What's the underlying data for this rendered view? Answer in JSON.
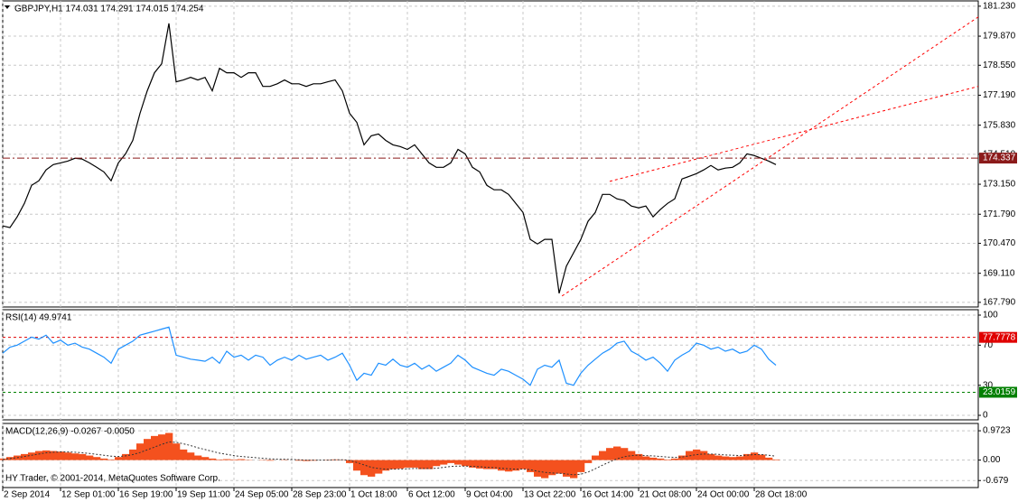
{
  "chart_data": [
    {
      "type": "line",
      "title": "GBPJPY,H1  174.031 174.291 174.015 174.254",
      "color": "#000000",
      "xlim": [
        0,
        135
      ],
      "ylim": [
        167.58,
        181.47
      ],
      "grid": true,
      "yticks": [
        {
          "value": 181.23,
          "label": "181.230"
        },
        {
          "value": 179.87,
          "label": "179.870"
        },
        {
          "value": 178.55,
          "label": "178.550"
        },
        {
          "value": 177.19,
          "label": "177.190"
        },
        {
          "value": 175.83,
          "label": "175.830"
        },
        {
          "value": 174.51,
          "label": "174.510"
        },
        {
          "value": 173.15,
          "label": "173.150"
        },
        {
          "value": 171.79,
          "label": "171.790"
        },
        {
          "value": 170.47,
          "label": "170.470"
        },
        {
          "value": 169.11,
          "label": "169.110"
        },
        {
          "value": 167.79,
          "label": "167.790"
        }
      ],
      "values": [
        171.26,
        171.18,
        171.67,
        172.28,
        173.1,
        173.31,
        173.8,
        174.04,
        174.12,
        174.2,
        174.33,
        174.29,
        174.12,
        173.92,
        173.71,
        173.31,
        174.12,
        174.53,
        175.14,
        176.37,
        177.39,
        178.21,
        178.62,
        180.45,
        177.8,
        177.88,
        178.0,
        177.88,
        178.0,
        177.39,
        178.41,
        178.21,
        178.21,
        178.0,
        178.21,
        178.21,
        177.59,
        177.59,
        177.71,
        177.88,
        177.71,
        177.71,
        177.59,
        177.71,
        177.71,
        177.8,
        177.88,
        177.39,
        176.37,
        175.96,
        174.94,
        175.35,
        175.43,
        175.14,
        174.94,
        174.86,
        174.73,
        174.94,
        174.53,
        174.12,
        173.92,
        173.92,
        174.12,
        174.73,
        174.53,
        173.92,
        173.71,
        173.1,
        172.9,
        172.9,
        172.69,
        172.28,
        171.87,
        170.65,
        170.44,
        170.65,
        170.65,
        168.2,
        169.43,
        170.04,
        170.65,
        171.47,
        171.87,
        172.69,
        172.69,
        172.49,
        172.41,
        172.16,
        172.08,
        172.16,
        171.67,
        172.0,
        172.28,
        172.49,
        173.39,
        173.51,
        173.63,
        173.8,
        174.0,
        173.8,
        173.88,
        173.92,
        174.12,
        174.53,
        174.45,
        174.33,
        174.2,
        174.04
      ],
      "current_price": 174.337,
      "current_color": "#8b1a1a",
      "trendlines": [
        {
          "x": [
            77.4,
            135
          ],
          "y": [
            168.08,
            180.74
          ]
        },
        {
          "x": [
            84,
            135
          ],
          "y": [
            173.28,
            177.59
          ]
        }
      ],
      "trendline_color": "#ff0000"
    },
    {
      "type": "line",
      "title": "RSI(14) 49.9741",
      "color": "#1e90ff",
      "xlim": [
        0,
        135
      ],
      "ylim": [
        -4.5,
        105.4
      ],
      "grid": true,
      "yticks": [
        100,
        70,
        30,
        0
      ],
      "levels": [
        {
          "value": 77.7778,
          "color": "#e00000"
        },
        {
          "value": 23.0159,
          "color": "#008000"
        }
      ],
      "values": [
        62,
        68,
        70,
        74,
        78,
        76,
        80,
        72,
        75,
        70,
        72,
        68,
        66,
        62,
        58,
        52,
        66,
        70,
        74,
        80,
        82,
        84,
        86,
        88,
        60,
        58,
        56,
        55,
        54,
        58,
        52,
        64,
        58,
        60,
        55,
        60,
        58,
        50,
        55,
        58,
        55,
        60,
        56,
        58,
        60,
        55,
        58,
        62,
        50,
        35,
        42,
        40,
        52,
        50,
        56,
        50,
        48,
        52,
        46,
        50,
        44,
        48,
        52,
        60,
        55,
        48,
        45,
        42,
        40,
        46,
        44,
        40,
        36,
        30,
        46,
        50,
        48,
        55,
        32,
        30,
        42,
        50,
        56,
        62,
        66,
        72,
        74,
        64,
        60,
        55,
        58,
        52,
        44,
        55,
        60,
        64,
        72,
        70,
        66,
        68,
        64,
        66,
        62,
        64,
        70,
        66,
        56,
        50
      ]
    },
    {
      "type": "bar",
      "title": "MACD(12,26,9) -0.0267 -0.0050",
      "color": "#f4511e",
      "signal_color": "#333333",
      "annotation": "HY Trader, © 2001-2014, MetaQuotes Software Corp.",
      "xlim": [
        0,
        135
      ],
      "ylim": [
        -0.912,
        1.215
      ],
      "grid": true,
      "yticks": [
        0.9723,
        {
          "value": 0,
          "label": "0.00"
        },
        -0.679
      ],
      "xticks": [
        {
          "value": 0,
          "label": "2 Sep 2014"
        },
        {
          "value": 8,
          "label": "12 Sep 01:00"
        },
        {
          "value": 16,
          "label": "16 Sep 19:00"
        },
        {
          "value": 24,
          "label": "19 Sep 11:00"
        },
        {
          "value": 32,
          "label": "24 Sep 05:00"
        },
        {
          "value": 40,
          "label": "28 Sep 23:00"
        },
        {
          "value": 48,
          "label": "1 Oct 18:00"
        },
        {
          "value": 56,
          "label": "6 Oct 12:00"
        },
        {
          "value": 64,
          "label": "9 Oct 04:00"
        },
        {
          "value": 72,
          "label": "13 Oct 22:00"
        },
        {
          "value": 80,
          "label": "16 Oct 14:00"
        },
        {
          "value": 88,
          "label": "21 Oct 08:00"
        },
        {
          "value": 96,
          "label": "24 Oct 00:00"
        },
        {
          "value": 104,
          "label": "28 Oct 18:00"
        }
      ],
      "values": [
        0.05,
        0.1,
        0.15,
        0.2,
        0.25,
        0.3,
        0.32,
        0.3,
        0.28,
        0.25,
        0.22,
        0.2,
        0.15,
        0.1,
        0.05,
        0.02,
        0.1,
        0.2,
        0.35,
        0.55,
        0.7,
        0.8,
        0.85,
        0.9,
        0.55,
        0.35,
        0.25,
        0.15,
        0.1,
        0.05,
        0.02,
        0.03,
        0.02,
        0.03,
        0.01,
        0.0,
        -0.01,
        -0.02,
        0.0,
        0.01,
        0.0,
        -0.02,
        -0.03,
        -0.02,
        0.0,
        0.01,
        0.02,
        0.01,
        -0.1,
        -0.35,
        -0.5,
        -0.55,
        -0.45,
        -0.35,
        -0.3,
        -0.28,
        -0.25,
        -0.25,
        -0.3,
        -0.3,
        -0.2,
        -0.15,
        -0.1,
        -0.15,
        -0.2,
        -0.25,
        -0.28,
        -0.3,
        -0.3,
        -0.35,
        -0.38,
        -0.35,
        -0.3,
        -0.4,
        -0.55,
        -0.6,
        -0.5,
        -0.45,
        -0.55,
        -0.6,
        -0.4,
        -0.1,
        0.15,
        0.3,
        0.4,
        0.45,
        0.4,
        0.3,
        0.2,
        0.12,
        0.08,
        0.05,
        0.02,
        0.05,
        0.15,
        0.3,
        0.35,
        0.3,
        0.2,
        0.15,
        0.12,
        0.1,
        0.12,
        0.2,
        0.25,
        0.18,
        0.08,
        0.02
      ],
      "signal": [
        0.02,
        0.05,
        0.08,
        0.12,
        0.16,
        0.2,
        0.24,
        0.26,
        0.27,
        0.27,
        0.26,
        0.24,
        0.22,
        0.19,
        0.16,
        0.13,
        0.12,
        0.14,
        0.18,
        0.25,
        0.34,
        0.43,
        0.52,
        0.6,
        0.59,
        0.54,
        0.48,
        0.41,
        0.35,
        0.29,
        0.23,
        0.19,
        0.15,
        0.12,
        0.1,
        0.08,
        0.06,
        0.04,
        0.03,
        0.03,
        0.02,
        0.01,
        0.0,
        0.0,
        0.0,
        0.0,
        0.01,
        0.01,
        -0.01,
        -0.08,
        -0.16,
        -0.24,
        -0.28,
        -0.3,
        -0.3,
        -0.3,
        -0.29,
        -0.28,
        -0.28,
        -0.28,
        -0.27,
        -0.24,
        -0.21,
        -0.2,
        -0.2,
        -0.21,
        -0.22,
        -0.24,
        -0.25,
        -0.27,
        -0.29,
        -0.3,
        -0.3,
        -0.32,
        -0.37,
        -0.41,
        -0.43,
        -0.44,
        -0.46,
        -0.49,
        -0.47,
        -0.4,
        -0.29,
        -0.17,
        -0.06,
        0.04,
        0.11,
        0.15,
        0.16,
        0.15,
        0.14,
        0.12,
        0.1,
        0.09,
        0.1,
        0.14,
        0.18,
        0.2,
        0.2,
        0.19,
        0.17,
        0.16,
        0.15,
        0.16,
        0.18,
        0.18,
        0.16,
        0.13
      ]
    }
  ]
}
